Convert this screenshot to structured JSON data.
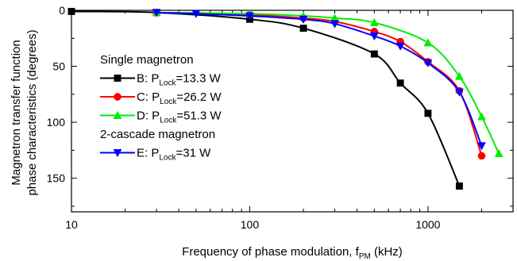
{
  "chart_data": {
    "type": "line",
    "xlabel": "Frequency of phase modulation, f",
    "xlabel_sub": "PM",
    "xlabel_unit": " (kHz)",
    "ylabel_line1": "Magnetron transfer function",
    "ylabel_line2": "phase characteristics (degrees)",
    "x_scale": "log",
    "xlim": [
      10,
      3000
    ],
    "ylim": [
      0,
      180
    ],
    "y_inverted": true,
    "x_ticks": [
      10,
      100,
      1000
    ],
    "x_tick_labels": [
      "10",
      "100",
      "1000"
    ],
    "y_ticks": [
      0,
      50,
      100,
      150
    ],
    "y_tick_labels": [
      "0",
      "50",
      "100",
      "150"
    ],
    "grid": false,
    "legend_position": "center-left",
    "legend_groups": [
      {
        "title": "Single magnetron",
        "series": [
          0,
          1,
          2
        ]
      },
      {
        "title": "2-cascade magnetron",
        "series": [
          3
        ]
      }
    ],
    "series": [
      {
        "letter": "B",
        "value": "=13.3 W",
        "color": "#000000",
        "marker": "square",
        "x": [
          10,
          30,
          100,
          200,
          500,
          700,
          1000,
          1500
        ],
        "y": [
          1,
          2,
          8,
          16,
          39,
          65,
          92,
          157
        ]
      },
      {
        "letter": "C",
        "value": "=26.2 W",
        "color": "#ff0000",
        "marker": "circle",
        "x": [
          30,
          100,
          200,
          300,
          500,
          700,
          1000,
          1500,
          2000
        ],
        "y": [
          2,
          4,
          7,
          10,
          19,
          28,
          46,
          72,
          130
        ]
      },
      {
        "letter": "D",
        "value": "=51.3 W",
        "color": "#00ee00",
        "marker": "triangle-up",
        "x": [
          30,
          100,
          200,
          300,
          500,
          1000,
          1500,
          2000,
          2500
        ],
        "y": [
          2,
          3,
          5,
          7,
          11,
          29,
          59,
          95,
          128
        ]
      },
      {
        "letter": "E",
        "value": "=31 W",
        "color": "#0000ff",
        "marker": "triangle-down",
        "x": [
          30,
          50,
          100,
          200,
          300,
          500,
          700,
          1000,
          1500,
          2000
        ],
        "y": [
          2,
          3,
          5,
          8,
          12,
          23,
          32,
          47,
          73,
          121
        ]
      }
    ],
    "legend_label_prefix": ": P",
    "legend_label_sub": "Lock"
  }
}
